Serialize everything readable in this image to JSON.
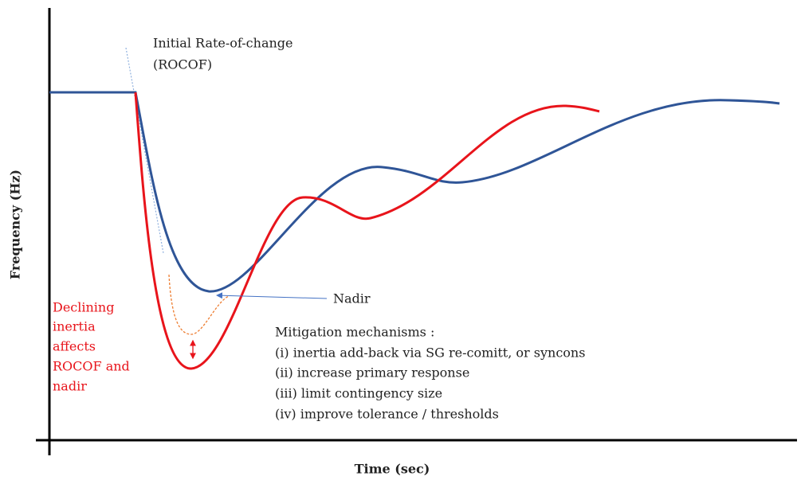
{
  "axes": {
    "x_label": "Time (sec)",
    "y_label": "Frequency (Hz)"
  },
  "annotations": {
    "rocof": [
      "Initial Rate-of-change",
      "(ROCOF)"
    ],
    "nadir": "Nadir",
    "declining": [
      "Declining",
      "inertia",
      "affects",
      "ROCOF and",
      "nadir"
    ]
  },
  "mitigation": {
    "title": "Mitigation mechanisms :",
    "items": [
      "(i) inertia add-back via SG re-comitt, or syncons",
      "(ii) increase primary response",
      "(iii) limit contingency size",
      "(iv) improve tolerance / thresholds"
    ]
  }
}
